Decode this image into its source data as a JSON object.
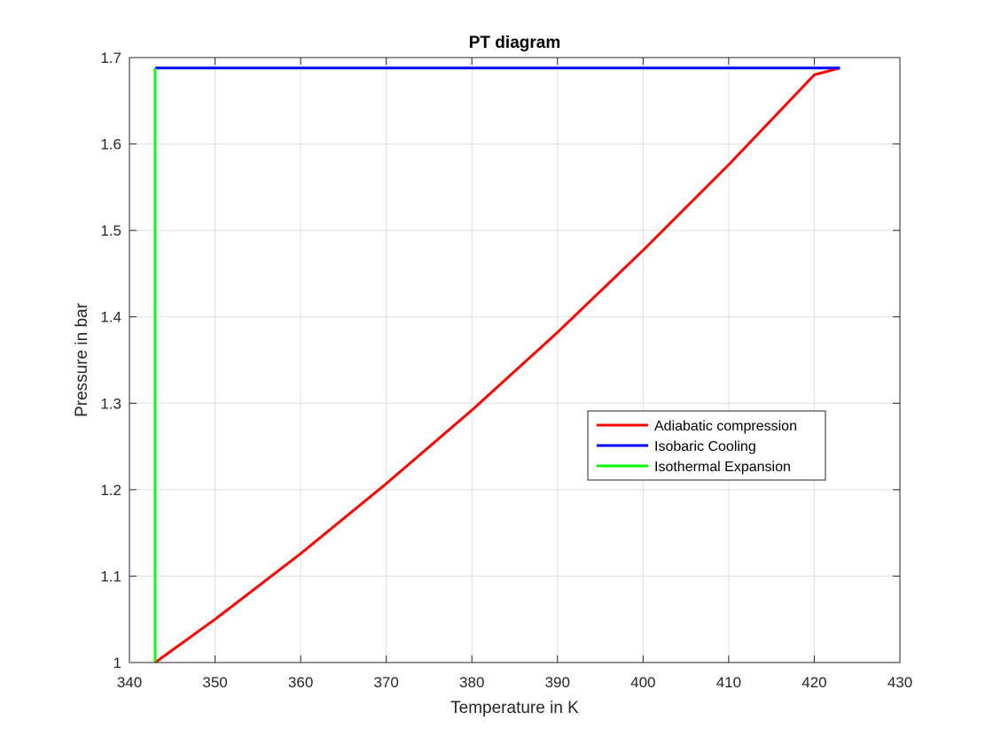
{
  "chart_data": {
    "type": "line",
    "title": "PT diagram",
    "xlabel": "Temperature in K",
    "ylabel": "Pressure in bar",
    "xlim": [
      340,
      430
    ],
    "ylim": [
      1,
      1.7
    ],
    "xticks": [
      340,
      350,
      360,
      370,
      380,
      390,
      400,
      410,
      420,
      430
    ],
    "yticks": [
      1,
      1.1,
      1.2,
      1.3,
      1.4,
      1.5,
      1.6,
      1.7
    ],
    "grid": true,
    "box": true,
    "legend_position": "right-center",
    "series": [
      {
        "name": "Adiabatic compression",
        "color": "#ff0000",
        "x": [
          343,
          350,
          360,
          370,
          380,
          390,
          400,
          410,
          420,
          423
        ],
        "y": [
          1.0,
          1.05,
          1.126,
          1.207,
          1.292,
          1.382,
          1.477,
          1.576,
          1.68,
          1.688
        ]
      },
      {
        "name": "Isobaric Cooling",
        "color": "#0000ff",
        "x": [
          423,
          343
        ],
        "y": [
          1.688,
          1.688
        ]
      },
      {
        "name": "Isothermal Expansion",
        "color": "#00ff00",
        "x": [
          343,
          343
        ],
        "y": [
          1.688,
          1.0
        ]
      }
    ]
  }
}
